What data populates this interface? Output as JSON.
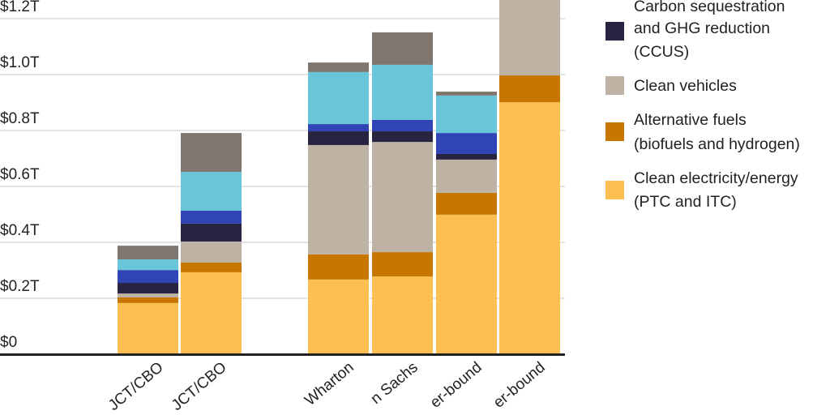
{
  "chart_data": {
    "type": "bar",
    "stacked": true,
    "ylim": [
      0,
      1.267
    ],
    "grid": true,
    "legend_position": "right",
    "y_ticks": [
      {
        "value": 0,
        "label": "$0"
      },
      {
        "value": 0.2,
        "label": "$0.2T"
      },
      {
        "value": 0.4,
        "label": "$0.4T"
      },
      {
        "value": 0.6,
        "label": "$0.6T"
      },
      {
        "value": 0.8,
        "label": "$0.8T"
      },
      {
        "value": 1.0,
        "label": "$1.0T"
      },
      {
        "value": 1.2,
        "label": "$1.2T"
      }
    ],
    "categories": [
      "JCT/CBO",
      "JCT/CBO",
      "Wharton",
      "n Sachs",
      "er-bound",
      "er-bound"
    ],
    "series": [
      {
        "name": "Clean electricity/energy (PTC and ITC)",
        "color": "#FBBF52",
        "values": [
          0.183,
          0.293,
          0.267,
          0.278,
          0.499,
          0.901
        ]
      },
      {
        "name": "Alternative fuels (biofuels and hydrogen)",
        "color": "#C77600",
        "values": [
          0.02,
          0.035,
          0.09,
          0.087,
          0.078,
          0.096
        ]
      },
      {
        "name": "Clean vehicles",
        "color": "#BEB2A5",
        "values": [
          0.014,
          0.075,
          0.391,
          0.394,
          0.119,
          0.27
        ]
      },
      {
        "name": "Carbon sequestration and GHG reduction (CCUS)",
        "color": "#282340",
        "values": [
          0.038,
          0.064,
          0.049,
          0.038,
          0.02,
          null
        ]
      },
      {
        "color": "#3044B5",
        "values": [
          0.046,
          0.046,
          0.026,
          0.041,
          0.075,
          null
        ]
      },
      {
        "color": "#69C5DA",
        "values": [
          0.038,
          0.139,
          0.186,
          0.197,
          0.134,
          null
        ]
      },
      {
        "color": "#7E766F",
        "values": [
          0.049,
          0.139,
          0.034,
          0.116,
          0.014,
          null
        ]
      }
    ],
    "legend": [
      {
        "color": "#282340",
        "lines": [
          "Carbon sequestration",
          "and GHG reduction",
          "(CCUS)"
        ]
      },
      {
        "color": "#BEB2A5",
        "lines": [
          "Clean vehicles"
        ]
      },
      {
        "color": "#C77600",
        "lines": [
          "Alternative fuels",
          "(biofuels and hydrogen)"
        ]
      },
      {
        "color": "#FBBF52",
        "lines": [
          "Clean electricity/energy",
          "(PTC and ITC)"
        ]
      }
    ]
  }
}
